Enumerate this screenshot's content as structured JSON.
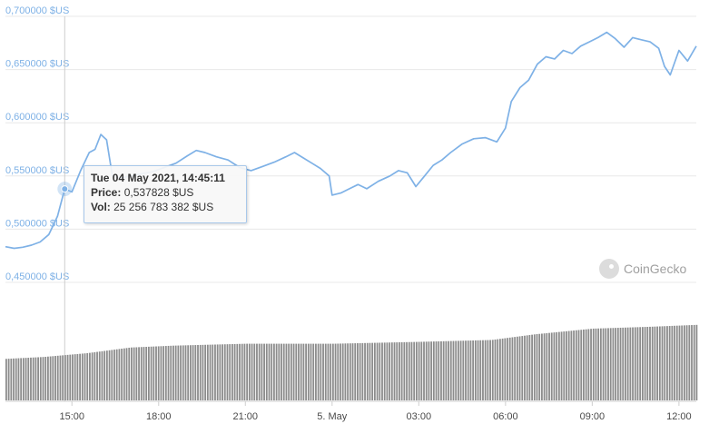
{
  "chart_data": {
    "type": "line",
    "y_axis": {
      "ticks": [
        "0,450000 $US",
        "0,500000 $US",
        "0,550000 $US",
        "0,600000 $US",
        "0,650000 $US",
        "0,700000 $US"
      ],
      "tick_values": [
        0.45,
        0.5,
        0.55,
        0.6,
        0.65,
        0.7
      ],
      "ylim": [
        0.45,
        0.7
      ]
    },
    "x_axis": {
      "ticks": [
        "15:00",
        "18:00",
        "21:00",
        "5. May",
        "03:00",
        "06:00",
        "09:00",
        "12:00"
      ],
      "tick_hours": [
        15,
        18,
        21,
        24,
        27,
        30,
        33,
        36
      ],
      "xlim_hours": [
        12.7,
        36.6
      ]
    },
    "price_series": {
      "color": "#7eb1e6",
      "points": [
        [
          12.7,
          0.4835
        ],
        [
          13.0,
          0.482
        ],
        [
          13.3,
          0.483
        ],
        [
          13.6,
          0.485
        ],
        [
          13.9,
          0.488
        ],
        [
          14.2,
          0.495
        ],
        [
          14.5,
          0.512
        ],
        [
          14.75,
          0.5378
        ],
        [
          15.0,
          0.535
        ],
        [
          15.3,
          0.555
        ],
        [
          15.6,
          0.572
        ],
        [
          15.8,
          0.575
        ],
        [
          16.0,
          0.589
        ],
        [
          16.2,
          0.584
        ],
        [
          16.4,
          0.55
        ],
        [
          16.7,
          0.548
        ],
        [
          17.0,
          0.55
        ],
        [
          17.4,
          0.552
        ],
        [
          17.8,
          0.554
        ],
        [
          18.2,
          0.558
        ],
        [
          18.6,
          0.562
        ],
        [
          19.0,
          0.569
        ],
        [
          19.3,
          0.574
        ],
        [
          19.6,
          0.572
        ],
        [
          20.0,
          0.568
        ],
        [
          20.4,
          0.565
        ],
        [
          20.8,
          0.558
        ],
        [
          21.2,
          0.555
        ],
        [
          21.6,
          0.559
        ],
        [
          22.0,
          0.563
        ],
        [
          22.4,
          0.568
        ],
        [
          22.7,
          0.572
        ],
        [
          23.0,
          0.567
        ],
        [
          23.3,
          0.562
        ],
        [
          23.6,
          0.557
        ],
        [
          23.9,
          0.55
        ],
        [
          24.0,
          0.532
        ],
        [
          24.3,
          0.534
        ],
        [
          24.6,
          0.538
        ],
        [
          24.9,
          0.542
        ],
        [
          25.2,
          0.538
        ],
        [
          25.6,
          0.545
        ],
        [
          26.0,
          0.55
        ],
        [
          26.3,
          0.555
        ],
        [
          26.6,
          0.553
        ],
        [
          26.9,
          0.54
        ],
        [
          27.2,
          0.55
        ],
        [
          27.5,
          0.56
        ],
        [
          27.8,
          0.565
        ],
        [
          28.1,
          0.572
        ],
        [
          28.5,
          0.58
        ],
        [
          28.9,
          0.585
        ],
        [
          29.3,
          0.586
        ],
        [
          29.7,
          0.582
        ],
        [
          30.0,
          0.595
        ],
        [
          30.2,
          0.62
        ],
        [
          30.5,
          0.633
        ],
        [
          30.8,
          0.64
        ],
        [
          31.1,
          0.655
        ],
        [
          31.4,
          0.662
        ],
        [
          31.7,
          0.66
        ],
        [
          32.0,
          0.668
        ],
        [
          32.3,
          0.665
        ],
        [
          32.6,
          0.672
        ],
        [
          32.9,
          0.676
        ],
        [
          33.2,
          0.68
        ],
        [
          33.5,
          0.685
        ],
        [
          33.8,
          0.679
        ],
        [
          34.1,
          0.671
        ],
        [
          34.4,
          0.68
        ],
        [
          34.7,
          0.678
        ],
        [
          35.0,
          0.676
        ],
        [
          35.3,
          0.67
        ],
        [
          35.5,
          0.653
        ],
        [
          35.7,
          0.645
        ],
        [
          36.0,
          0.668
        ],
        [
          36.3,
          0.658
        ],
        [
          36.6,
          0.672
        ]
      ]
    },
    "volume_series": {
      "color": "#8c8c8c",
      "relative_levels": [
        [
          12.7,
          0.44
        ],
        [
          14.0,
          0.46
        ],
        [
          15.5,
          0.5
        ],
        [
          17.0,
          0.56
        ],
        [
          18.5,
          0.58
        ],
        [
          21.0,
          0.6
        ],
        [
          24.0,
          0.6
        ],
        [
          27.0,
          0.62
        ],
        [
          29.5,
          0.64
        ],
        [
          31.0,
          0.7
        ],
        [
          33.0,
          0.76
        ],
        [
          35.0,
          0.78
        ],
        [
          36.6,
          0.8
        ]
      ]
    },
    "tooltip": {
      "date": "Tue 04 May 2021, 14:45:11",
      "price_label": "Price:",
      "price_value": "0,537828 $US",
      "vol_label": "Vol:",
      "vol_value": "25 256 783 382 $US"
    },
    "hover": {
      "x_hours": 14.75,
      "y": 0.5378
    },
    "brand": "CoinGecko"
  }
}
